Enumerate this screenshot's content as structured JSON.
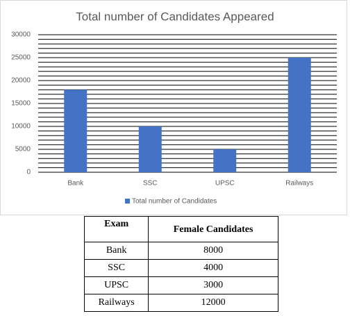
{
  "chart_data": {
    "type": "bar",
    "title": "Total number of Candidates Appeared",
    "categories": [
      "Bank",
      "SSC",
      "UPSC",
      "Railways"
    ],
    "series": [
      {
        "name": "Total number of Candidates",
        "color": "#4472c4",
        "values": [
          18000,
          10000,
          5000,
          25000
        ]
      }
    ],
    "ylim": [
      0,
      30000
    ],
    "yticks": [
      0,
      5000,
      10000,
      15000,
      20000,
      25000,
      30000
    ],
    "minor_gridlines": [
      1000,
      2000,
      3000,
      4000,
      6000,
      7000,
      8000,
      9000,
      11000,
      12000,
      13000,
      14000,
      16000,
      17000,
      18000,
      19000,
      21000,
      22000,
      23000,
      24000,
      26000,
      27000,
      28000,
      29000
    ],
    "grid": true,
    "legend": "bottom"
  },
  "table": {
    "header": [
      "Exam",
      "Female Candidates"
    ],
    "rows": [
      [
        "Bank",
        "8000"
      ],
      [
        "SSC",
        "4000"
      ],
      [
        "UPSC",
        "3000"
      ],
      [
        "Railways",
        "12000"
      ]
    ]
  }
}
